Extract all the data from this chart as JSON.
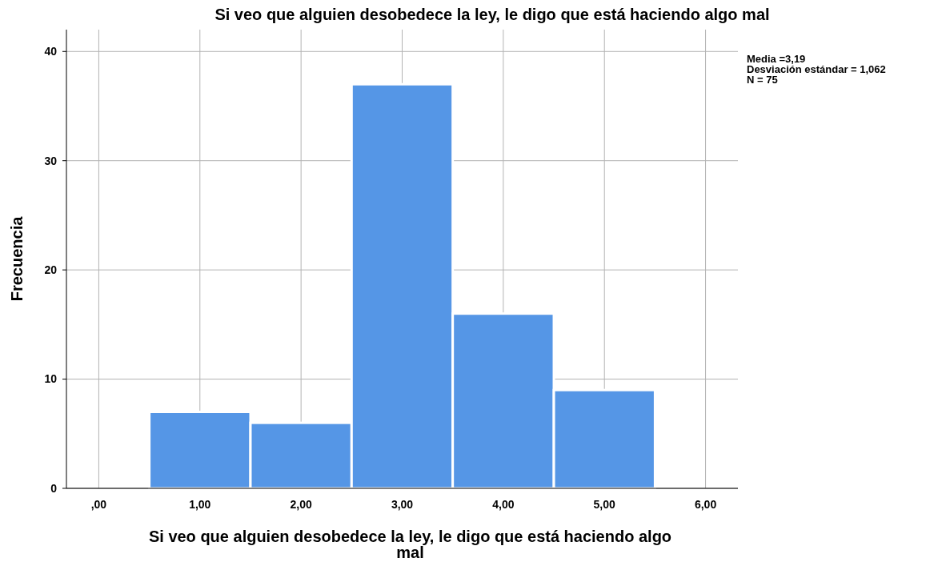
{
  "chart_data": {
    "type": "histogram",
    "title": "Si veo que alguien desobedece la ley, le digo que está haciendo algo mal",
    "xlabel": "Si veo que alguien desobedece la ley, le digo que está haciendo algo mal",
    "ylabel": "Frecuencia",
    "bins": [
      0.5,
      1.5,
      2.5,
      3.5,
      4.5,
      5.5
    ],
    "values": [
      7,
      6,
      37,
      16,
      9
    ],
    "color": "#5596e6",
    "xlim": [
      -0.32,
      6.32
    ],
    "xticks": [
      {
        "value": 0,
        "label": ",00"
      },
      {
        "value": 1,
        "label": "1,00"
      },
      {
        "value": 2,
        "label": "2,00"
      },
      {
        "value": 3,
        "label": "3,00"
      },
      {
        "value": 4,
        "label": "4,00"
      },
      {
        "value": 5,
        "label": "5,00"
      },
      {
        "value": 6,
        "label": "6,00"
      }
    ],
    "ylim": [
      0,
      42
    ],
    "yticks": [
      0,
      10,
      20,
      30,
      40
    ],
    "grid": true,
    "annotations": [
      "Media =3,19",
      "Desviación estándar = 1,062",
      "N = 75"
    ]
  }
}
